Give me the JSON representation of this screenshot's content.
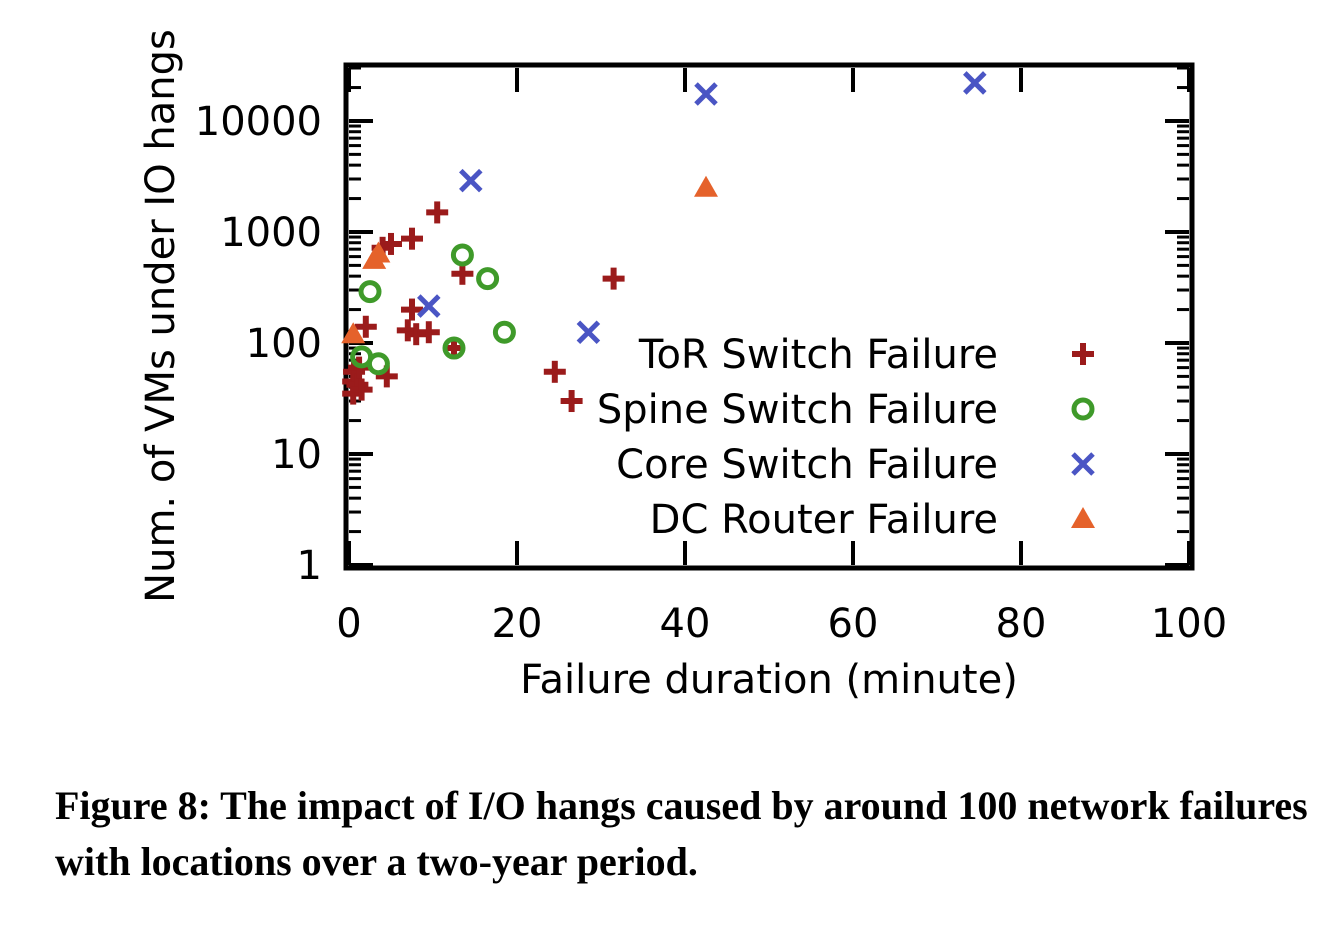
{
  "chart_data": {
    "type": "scatter",
    "xlabel": "Failure duration (minute)",
    "ylabel": "Num. of VMs under IO hangs",
    "xlim": [
      0,
      100
    ],
    "ylim": [
      1,
      30000
    ],
    "y_scale": "log",
    "x_ticks": [
      "0",
      "20",
      "40",
      "60",
      "80",
      "100"
    ],
    "y_ticks": [
      "1",
      "10",
      "100",
      "1000",
      "10000"
    ],
    "legend_position": "bottom-right",
    "series": [
      {
        "name": "ToR Switch Failure",
        "marker": "plus",
        "color": "#9b1b1b",
        "points": [
          [
            0.5,
            35
          ],
          [
            0.5,
            45
          ],
          [
            0.6,
            55
          ],
          [
            1.0,
            42
          ],
          [
            1.2,
            60
          ],
          [
            1.5,
            38
          ],
          [
            2.0,
            140
          ],
          [
            4.5,
            50
          ],
          [
            4.0,
            720
          ],
          [
            5.0,
            780
          ],
          [
            7.5,
            870
          ],
          [
            7.0,
            130
          ],
          [
            7.5,
            200
          ],
          [
            8.0,
            120
          ],
          [
            9.5,
            125
          ],
          [
            10.5,
            1500
          ],
          [
            12.5,
            90
          ],
          [
            13.5,
            420
          ],
          [
            24.5,
            55
          ],
          [
            26.5,
            30
          ],
          [
            31.5,
            380
          ]
        ]
      },
      {
        "name": "Spine Switch Failure",
        "marker": "circle",
        "color": "#3f9a2a",
        "points": [
          [
            1.5,
            75
          ],
          [
            2.5,
            290
          ],
          [
            3.5,
            65
          ],
          [
            12.5,
            90
          ],
          [
            13.5,
            620
          ],
          [
            16.5,
            380
          ],
          [
            18.5,
            125
          ]
        ]
      },
      {
        "name": "Core Switch Failure",
        "marker": "x",
        "color": "#4a55c4",
        "points": [
          [
            9.5,
            215
          ],
          [
            14.5,
            2900
          ],
          [
            28.5,
            125
          ],
          [
            42.5,
            17500
          ],
          [
            74.5,
            22000
          ]
        ]
      },
      {
        "name": "DC Router Failure",
        "marker": "triangle",
        "color": "#e5622b",
        "points": [
          [
            0.5,
            120
          ],
          [
            3.0,
            560
          ],
          [
            3.5,
            640
          ],
          [
            42.5,
            2500
          ]
        ]
      }
    ]
  },
  "caption": "Figure 8: The impact of I/O hangs caused by around 100 network failures with locations over a two-year period."
}
